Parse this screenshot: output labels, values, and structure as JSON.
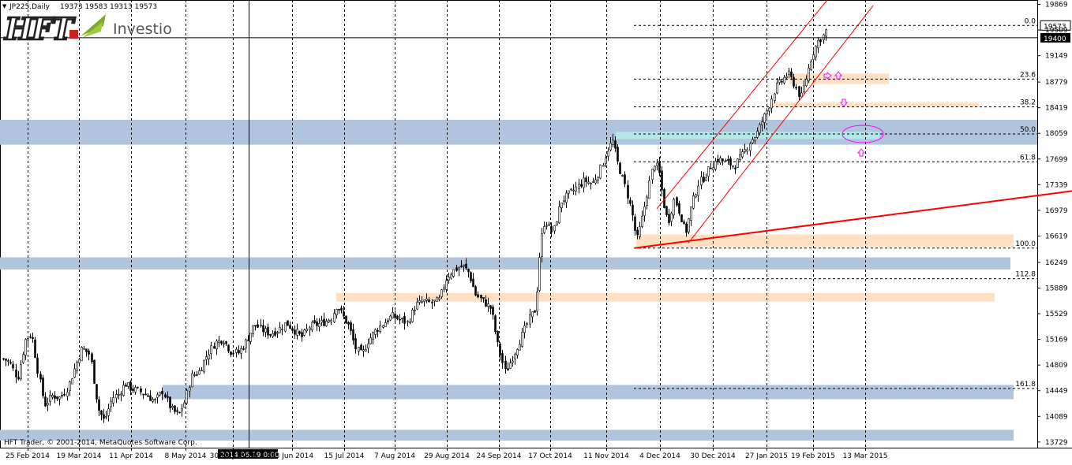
{
  "window": {
    "symbol_header": "JP225,Daily",
    "ohlc_header": "19373 19583 19313 19573",
    "copyright": "HFT Trader, © 2001-2014, MetaQuotes Software Corp."
  },
  "logo": {
    "brand": "HFT",
    "name": "Investio"
  },
  "crosshair": {
    "date_label": "2014.06.19 0:00",
    "price_label": "19400",
    "price": 19400
  },
  "current_price": {
    "label": "19573",
    "price": 19573
  },
  "chart_data": {
    "type": "candlestick",
    "symbol": "JP225",
    "timeframe": "Daily",
    "ylim": [
      13650,
      19930
    ],
    "y_ticks": [
      {
        "label": "19869",
        "value": 19869
      },
      {
        "label": "19509",
        "value": 19509
      },
      {
        "label": "19149",
        "value": 19149
      },
      {
        "label": "18779",
        "value": 18779
      },
      {
        "label": "18419",
        "value": 18419
      },
      {
        "label": "18059",
        "value": 18059
      },
      {
        "label": "17699",
        "value": 17699
      },
      {
        "label": "17339",
        "value": 17339
      },
      {
        "label": "16979",
        "value": 16979
      },
      {
        "label": "16619",
        "value": 16619
      },
      {
        "label": "16249",
        "value": 16249
      },
      {
        "label": "15889",
        "value": 15889
      },
      {
        "label": "15529",
        "value": 15529
      },
      {
        "label": "15169",
        "value": 15169
      },
      {
        "label": "14809",
        "value": 14809
      },
      {
        "label": "14449",
        "value": 14449
      },
      {
        "label": "14089",
        "value": 14089
      },
      {
        "label": "13729",
        "value": 13729
      }
    ],
    "x_ticks": [
      "25 Feb 2014",
      "19 Mar 2014",
      "11 Apr 2014",
      "8 May 2014",
      "30 May 2014",
      "23 Jun 2014",
      "15 Jul 2014",
      "7 Aug 2014",
      "29 Aug 2014",
      "24 Sep 2014",
      "17 Oct 2014",
      "11 Nov 2014",
      "4 Dec 2014",
      "30 Dec 2014",
      "27 Jan 2015",
      "19 Feb 2015",
      "13 Mar 2015"
    ],
    "close_path": [
      [
        0,
        14920
      ],
      [
        12,
        14850
      ],
      [
        22,
        14620
      ],
      [
        32,
        15170
      ],
      [
        40,
        15250
      ],
      [
        48,
        14700
      ],
      [
        56,
        14250
      ],
      [
        66,
        14380
      ],
      [
        76,
        14350
      ],
      [
        86,
        14500
      ],
      [
        96,
        14820
      ],
      [
        104,
        15050
      ],
      [
        114,
        14950
      ],
      [
        124,
        14200
      ],
      [
        132,
        14020
      ],
      [
        142,
        14350
      ],
      [
        150,
        14400
      ],
      [
        158,
        14550
      ],
      [
        166,
        14480
      ],
      [
        174,
        14450
      ],
      [
        184,
        14400
      ],
      [
        196,
        14300
      ],
      [
        206,
        14450
      ],
      [
        216,
        14200
      ],
      [
        226,
        14100
      ],
      [
        234,
        14300
      ],
      [
        242,
        14650
      ],
      [
        252,
        14720
      ],
      [
        262,
        14950
      ],
      [
        272,
        15120
      ],
      [
        282,
        15180
      ],
      [
        292,
        15000
      ],
      [
        302,
        14980
      ],
      [
        312,
        15150
      ],
      [
        322,
        15380
      ],
      [
        332,
        15300
      ],
      [
        342,
        15250
      ],
      [
        352,
        15300
      ],
      [
        362,
        15400
      ],
      [
        372,
        15300
      ],
      [
        382,
        15200
      ],
      [
        392,
        15350
      ],
      [
        402,
        15380
      ],
      [
        412,
        15420
      ],
      [
        420,
        15480
      ],
      [
        426,
        15650
      ],
      [
        434,
        15500
      ],
      [
        442,
        15350
      ],
      [
        450,
        15050
      ],
      [
        458,
        14950
      ],
      [
        466,
        15150
      ],
      [
        476,
        15300
      ],
      [
        486,
        15400
      ],
      [
        496,
        15500
      ],
      [
        506,
        15450
      ],
      [
        516,
        15400
      ],
      [
        526,
        15650
      ],
      [
        536,
        15700
      ],
      [
        546,
        15680
      ],
      [
        556,
        15720
      ],
      [
        566,
        16050
      ],
      [
        576,
        16150
      ],
      [
        586,
        16200
      ],
      [
        594,
        16100
      ],
      [
        602,
        15800
      ],
      [
        612,
        15700
      ],
      [
        622,
        15600
      ],
      [
        630,
        15100
      ],
      [
        640,
        14700
      ],
      [
        650,
        14950
      ],
      [
        660,
        15200
      ],
      [
        670,
        15450
      ],
      [
        678,
        15600
      ],
      [
        684,
        16500
      ],
      [
        690,
        16850
      ],
      [
        700,
        16650
      ],
      [
        710,
        17100
      ],
      [
        720,
        17200
      ],
      [
        730,
        17300
      ],
      [
        740,
        17400
      ],
      [
        750,
        17350
      ],
      [
        760,
        17550
      ],
      [
        770,
        17850
      ],
      [
        776,
        17950
      ],
      [
        782,
        17650
      ],
      [
        792,
        17300
      ],
      [
        800,
        16950
      ],
      [
        806,
        16550
      ],
      [
        812,
        16800
      ],
      [
        820,
        17250
      ],
      [
        828,
        17650
      ],
      [
        834,
        17550
      ],
      [
        840,
        17100
      ],
      [
        846,
        16800
      ],
      [
        854,
        17150
      ],
      [
        862,
        16900
      ],
      [
        868,
        16650
      ],
      [
        876,
        17050
      ],
      [
        884,
        17350
      ],
      [
        892,
        17450
      ],
      [
        900,
        17600
      ],
      [
        910,
        17700
      ],
      [
        920,
        17650
      ],
      [
        930,
        17600
      ],
      [
        940,
        17750
      ],
      [
        950,
        17950
      ],
      [
        958,
        18050
      ],
      [
        966,
        18250
      ],
      [
        974,
        18450
      ],
      [
        982,
        18700
      ],
      [
        990,
        18800
      ],
      [
        998,
        18900
      ],
      [
        1006,
        18750
      ],
      [
        1014,
        18550
      ],
      [
        1020,
        18800
      ],
      [
        1028,
        19150
      ],
      [
        1036,
        19350
      ],
      [
        1044,
        19450
      ],
      [
        1048,
        19573
      ]
    ],
    "fibonacci_levels": [
      {
        "label": "0.0",
        "price": 19573
      },
      {
        "label": "23.6",
        "price": 18820
      },
      {
        "label": "38.2",
        "price": 18430
      },
      {
        "label": "50.0",
        "price": 18050
      },
      {
        "label": "61.8",
        "price": 17660
      },
      {
        "label": "100.0",
        "price": 16450
      },
      {
        "label": "112.8",
        "price": 16020
      },
      {
        "label": "161.8",
        "price": 14480
      }
    ],
    "zones": {
      "blue": [
        [
          18250,
          17900
        ],
        [
          16320,
          16150
        ],
        [
          14530,
          14330
        ],
        [
          13900,
          13750
        ]
      ],
      "cyan": [
        [
          18080,
          17980
        ]
      ],
      "peach": [
        [
          18900,
          18750
        ],
        [
          18490,
          18430
        ],
        [
          16640,
          16470
        ],
        [
          15820,
          15700
        ]
      ]
    },
    "trendlines": [
      {
        "from": [
          16450,
          804
        ],
        "to": [
          17250,
          1358
        ]
      },
      {
        "from": [
          17000,
          832
        ],
        "to": [
          19930,
          1048
        ]
      },
      {
        "from": [
          16520,
          872
        ],
        "to": [
          19850,
          1106
        ]
      }
    ]
  },
  "colors": {
    "background": "#ffffff",
    "candle_bull": "#ffffff",
    "candle_bear": "#000000",
    "candle_outline": "#000000",
    "zone_blue": "#b0c4de",
    "zone_peach": "#ffdab9",
    "zone_cyan": "#b4e8e8",
    "trendline": "#ff0000",
    "annotation": "#ff00ff",
    "logo_red": "#cc1f1f",
    "logo_green": "#7cab2a"
  }
}
